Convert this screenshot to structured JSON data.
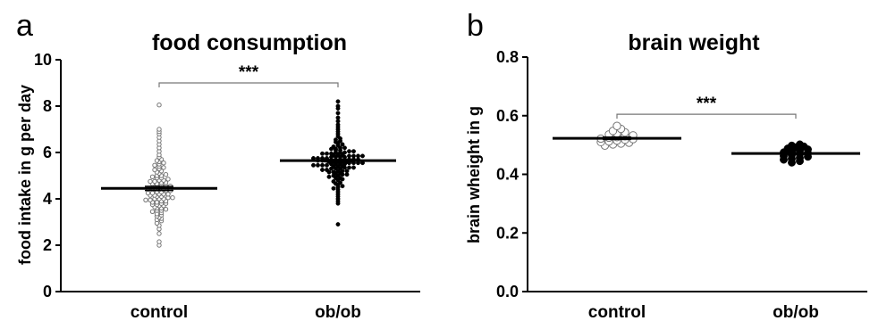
{
  "chart_data": [
    {
      "type": "scatter",
      "panel_label": "a",
      "title": "food consumption",
      "xlabel": "",
      "ylabel": "food intake in g per day",
      "ylim": [
        0,
        10
      ],
      "yticks": [
        "0",
        "2",
        "4",
        "6",
        "8",
        "10"
      ],
      "categories": [
        "control",
        "ob/ob"
      ],
      "significance": {
        "between": [
          "control",
          "ob/ob"
        ],
        "label": "***",
        "y": 9.0
      },
      "series": [
        {
          "category": "control",
          "marker": "open",
          "mean": 4.45,
          "sem": 0.09,
          "values": [
            2.0,
            2.15,
            2.5,
            2.7,
            2.85,
            2.95,
            3.05,
            3.1,
            3.15,
            3.2,
            3.25,
            3.3,
            3.35,
            3.4,
            3.45,
            3.5,
            3.5,
            3.55,
            3.6,
            3.6,
            3.65,
            3.7,
            3.7,
            3.75,
            3.75,
            3.8,
            3.8,
            3.85,
            3.85,
            3.9,
            3.9,
            3.95,
            3.95,
            4.0,
            4.0,
            4.0,
            4.05,
            4.05,
            4.1,
            4.1,
            4.15,
            4.15,
            4.2,
            4.2,
            4.2,
            4.25,
            4.25,
            4.3,
            4.3,
            4.35,
            4.35,
            4.4,
            4.4,
            4.4,
            4.45,
            4.45,
            4.5,
            4.5,
            4.55,
            4.55,
            4.6,
            4.6,
            4.65,
            4.65,
            4.7,
            4.7,
            4.75,
            4.75,
            4.8,
            4.8,
            4.85,
            4.9,
            4.9,
            4.95,
            5.0,
            5.0,
            5.05,
            5.1,
            5.15,
            5.2,
            5.25,
            5.3,
            5.35,
            5.4,
            5.45,
            5.5,
            5.55,
            5.6,
            5.65,
            5.7,
            5.8,
            5.9,
            6.05,
            6.2,
            6.35,
            6.5,
            6.65,
            6.8,
            6.9,
            7.0,
            8.05
          ]
        },
        {
          "category": "ob/ob",
          "marker": "filled",
          "mean": 5.65,
          "sem": 0.05,
          "values": [
            2.9,
            3.8,
            3.9,
            4.0,
            4.1,
            4.2,
            4.3,
            4.4,
            4.45,
            4.5,
            4.55,
            4.6,
            4.65,
            4.7,
            4.75,
            4.8,
            4.85,
            4.9,
            4.9,
            4.95,
            5.0,
            5.0,
            5.05,
            5.05,
            5.1,
            5.1,
            5.15,
            5.15,
            5.2,
            5.2,
            5.2,
            5.25,
            5.25,
            5.3,
            5.3,
            5.3,
            5.35,
            5.35,
            5.35,
            5.4,
            5.4,
            5.4,
            5.45,
            5.45,
            5.45,
            5.45,
            5.5,
            5.5,
            5.5,
            5.5,
            5.55,
            5.55,
            5.55,
            5.55,
            5.6,
            5.6,
            5.6,
            5.6,
            5.6,
            5.65,
            5.65,
            5.65,
            5.65,
            5.65,
            5.7,
            5.7,
            5.7,
            5.7,
            5.7,
            5.75,
            5.75,
            5.75,
            5.75,
            5.8,
            5.8,
            5.8,
            5.8,
            5.85,
            5.85,
            5.85,
            5.85,
            5.9,
            5.9,
            5.9,
            5.95,
            5.95,
            5.95,
            6.0,
            6.0,
            6.0,
            6.05,
            6.05,
            6.1,
            6.1,
            6.15,
            6.15,
            6.2,
            6.2,
            6.25,
            6.3,
            6.35,
            6.4,
            6.45,
            6.5,
            6.55,
            6.6,
            6.7,
            6.8,
            6.9,
            7.0,
            7.1,
            7.2,
            7.35,
            7.5,
            7.7,
            7.9,
            8.0,
            8.2
          ]
        }
      ]
    },
    {
      "type": "scatter",
      "panel_label": "b",
      "title": "brain weight",
      "xlabel": "",
      "ylabel": "brain wheight in g",
      "ylim": [
        0,
        0.8
      ],
      "yticks": [
        "0.0",
        "0.2",
        "0.4",
        "0.6",
        "0.8"
      ],
      "categories": [
        "control",
        "ob/ob"
      ],
      "significance": {
        "between": [
          "control",
          "ob/ob"
        ],
        "label": "***",
        "y": 0.605
      },
      "series": [
        {
          "category": "control",
          "marker": "open",
          "mean": 0.523,
          "sem": 0.004,
          "values": [
            0.498,
            0.502,
            0.505,
            0.508,
            0.51,
            0.512,
            0.515,
            0.518,
            0.52,
            0.522,
            0.525,
            0.527,
            0.53,
            0.533,
            0.536,
            0.54,
            0.543,
            0.548,
            0.555,
            0.565
          ]
        },
        {
          "category": "ob/ob",
          "marker": "filled",
          "mean": 0.471,
          "sem": 0.003,
          "values": [
            0.44,
            0.445,
            0.45,
            0.453,
            0.456,
            0.46,
            0.463,
            0.466,
            0.469,
            0.472,
            0.475,
            0.478,
            0.481,
            0.485,
            0.488,
            0.492,
            0.495,
            0.498,
            0.502
          ]
        }
      ]
    }
  ]
}
